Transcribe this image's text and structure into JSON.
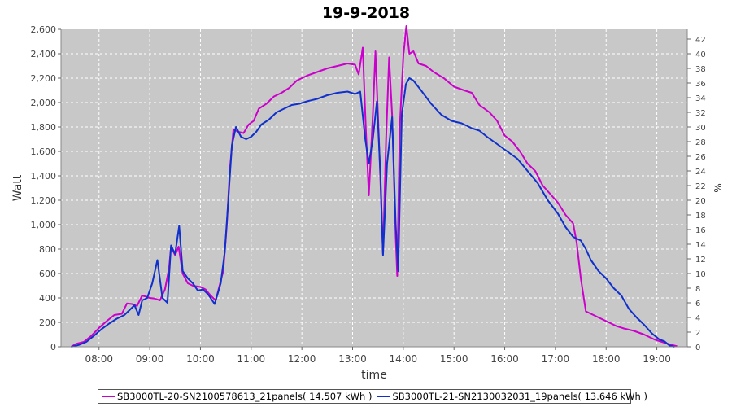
{
  "chart_data": {
    "type": "line",
    "title": "19-9-2018",
    "xlabel": "time",
    "ylabel": "Watt",
    "y2label": "%",
    "xlim": [
      7.25,
      19.6
    ],
    "ylim": [
      0,
      2600
    ],
    "y2lim": [
      0,
      43.333
    ],
    "x_ticks": [
      "08:00",
      "09:00",
      "10:00",
      "11:00",
      "12:00",
      "13:00",
      "14:00",
      "15:00",
      "16:00",
      "17:00",
      "18:00",
      "19:00"
    ],
    "y_ticks": [
      0,
      200,
      400,
      600,
      800,
      1000,
      1200,
      1400,
      1600,
      1800,
      2000,
      2200,
      2400,
      2600
    ],
    "y_tick_labels": [
      "0",
      "200",
      "400",
      "600",
      "800",
      "1,000",
      "1,200",
      "1,400",
      "1,600",
      "1,800",
      "2,000",
      "2,200",
      "2,400",
      "2,600"
    ],
    "y2_ticks": [
      0,
      2,
      4,
      6,
      8,
      10,
      12,
      14,
      16,
      18,
      20,
      22,
      24,
      26,
      28,
      30,
      32,
      34,
      36,
      38,
      40,
      42
    ],
    "grid": true,
    "legend_position": "bottom",
    "series": [
      {
        "name": "SB3000TL-20-SN2100578613_21panels( 14.507 kWh )",
        "color": "#cc00cc",
        "points": [
          [
            7.45,
            0
          ],
          [
            7.55,
            25
          ],
          [
            7.7,
            40
          ],
          [
            7.85,
            90
          ],
          [
            8.0,
            155
          ],
          [
            8.15,
            210
          ],
          [
            8.3,
            260
          ],
          [
            8.45,
            270
          ],
          [
            8.55,
            355
          ],
          [
            8.65,
            350
          ],
          [
            8.75,
            335
          ],
          [
            8.85,
            420
          ],
          [
            9.0,
            400
          ],
          [
            9.1,
            395
          ],
          [
            9.2,
            380
          ],
          [
            9.3,
            470
          ],
          [
            9.38,
            640
          ],
          [
            9.42,
            820
          ],
          [
            9.5,
            750
          ],
          [
            9.57,
            820
          ],
          [
            9.65,
            600
          ],
          [
            9.75,
            520
          ],
          [
            9.85,
            500
          ],
          [
            10.0,
            490
          ],
          [
            10.1,
            470
          ],
          [
            10.2,
            420
          ],
          [
            10.3,
            380
          ],
          [
            10.45,
            620
          ],
          [
            10.52,
            1000
          ],
          [
            10.58,
            1450
          ],
          [
            10.65,
            1780
          ],
          [
            10.75,
            1760
          ],
          [
            10.85,
            1750
          ],
          [
            10.95,
            1820
          ],
          [
            11.05,
            1850
          ],
          [
            11.15,
            1950
          ],
          [
            11.3,
            1990
          ],
          [
            11.45,
            2050
          ],
          [
            11.6,
            2080
          ],
          [
            11.75,
            2120
          ],
          [
            11.9,
            2180
          ],
          [
            12.1,
            2220
          ],
          [
            12.3,
            2250
          ],
          [
            12.5,
            2280
          ],
          [
            12.7,
            2300
          ],
          [
            12.9,
            2320
          ],
          [
            13.05,
            2310
          ],
          [
            13.12,
            2230
          ],
          [
            13.2,
            2450
          ],
          [
            13.26,
            1800
          ],
          [
            13.32,
            1240
          ],
          [
            13.4,
            1900
          ],
          [
            13.45,
            2420
          ],
          [
            13.52,
            1700
          ],
          [
            13.6,
            760
          ],
          [
            13.66,
            1700
          ],
          [
            13.72,
            2370
          ],
          [
            13.78,
            1900
          ],
          [
            13.85,
            900
          ],
          [
            13.88,
            580
          ],
          [
            13.93,
            1800
          ],
          [
            14.0,
            2380
          ],
          [
            14.06,
            2650
          ],
          [
            14.12,
            2400
          ],
          [
            14.2,
            2420
          ],
          [
            14.3,
            2320
          ],
          [
            14.45,
            2300
          ],
          [
            14.6,
            2250
          ],
          [
            14.8,
            2200
          ],
          [
            15.0,
            2130
          ],
          [
            15.2,
            2100
          ],
          [
            15.35,
            2080
          ],
          [
            15.5,
            1980
          ],
          [
            15.7,
            1920
          ],
          [
            15.85,
            1850
          ],
          [
            16.0,
            1730
          ],
          [
            16.15,
            1680
          ],
          [
            16.3,
            1600
          ],
          [
            16.45,
            1500
          ],
          [
            16.6,
            1440
          ],
          [
            16.75,
            1320
          ],
          [
            16.9,
            1250
          ],
          [
            17.05,
            1180
          ],
          [
            17.2,
            1080
          ],
          [
            17.35,
            1010
          ],
          [
            17.42,
            850
          ],
          [
            17.5,
            560
          ],
          [
            17.6,
            290
          ],
          [
            17.75,
            260
          ],
          [
            17.9,
            230
          ],
          [
            18.05,
            200
          ],
          [
            18.2,
            170
          ],
          [
            18.35,
            150
          ],
          [
            18.55,
            130
          ],
          [
            18.75,
            100
          ],
          [
            18.95,
            60
          ],
          [
            19.1,
            40
          ],
          [
            19.25,
            20
          ],
          [
            19.4,
            5
          ]
        ]
      },
      {
        "name": "SB3000TL-21-SN2130032031_19panels( 13.646 kWh )",
        "color": "#1030cc",
        "points": [
          [
            7.45,
            0
          ],
          [
            7.6,
            15
          ],
          [
            7.75,
            40
          ],
          [
            7.9,
            90
          ],
          [
            8.05,
            145
          ],
          [
            8.2,
            190
          ],
          [
            8.35,
            230
          ],
          [
            8.5,
            260
          ],
          [
            8.6,
            300
          ],
          [
            8.7,
            340
          ],
          [
            8.78,
            260
          ],
          [
            8.85,
            380
          ],
          [
            8.95,
            400
          ],
          [
            9.05,
            520
          ],
          [
            9.15,
            710
          ],
          [
            9.25,
            400
          ],
          [
            9.35,
            360
          ],
          [
            9.42,
            830
          ],
          [
            9.5,
            760
          ],
          [
            9.58,
            990
          ],
          [
            9.65,
            620
          ],
          [
            9.75,
            560
          ],
          [
            9.85,
            520
          ],
          [
            9.95,
            460
          ],
          [
            10.05,
            470
          ],
          [
            10.15,
            430
          ],
          [
            10.28,
            350
          ],
          [
            10.4,
            520
          ],
          [
            10.48,
            780
          ],
          [
            10.55,
            1200
          ],
          [
            10.62,
            1650
          ],
          [
            10.7,
            1800
          ],
          [
            10.8,
            1720
          ],
          [
            10.9,
            1700
          ],
          [
            11.0,
            1720
          ],
          [
            11.1,
            1760
          ],
          [
            11.2,
            1820
          ],
          [
            11.35,
            1860
          ],
          [
            11.5,
            1920
          ],
          [
            11.65,
            1950
          ],
          [
            11.8,
            1980
          ],
          [
            11.95,
            1990
          ],
          [
            12.1,
            2010
          ],
          [
            12.3,
            2030
          ],
          [
            12.5,
            2060
          ],
          [
            12.7,
            2080
          ],
          [
            12.9,
            2090
          ],
          [
            13.05,
            2070
          ],
          [
            13.15,
            2090
          ],
          [
            13.25,
            1700
          ],
          [
            13.32,
            1500
          ],
          [
            13.4,
            1700
          ],
          [
            13.48,
            2010
          ],
          [
            13.55,
            1400
          ],
          [
            13.6,
            750
          ],
          [
            13.68,
            1500
          ],
          [
            13.78,
            1880
          ],
          [
            13.85,
            1000
          ],
          [
            13.9,
            620
          ],
          [
            13.97,
            1900
          ],
          [
            14.05,
            2150
          ],
          [
            14.12,
            2200
          ],
          [
            14.2,
            2180
          ],
          [
            14.35,
            2100
          ],
          [
            14.55,
            1990
          ],
          [
            14.75,
            1900
          ],
          [
            14.95,
            1850
          ],
          [
            15.15,
            1830
          ],
          [
            15.35,
            1790
          ],
          [
            15.5,
            1770
          ],
          [
            15.65,
            1720
          ],
          [
            15.85,
            1660
          ],
          [
            16.05,
            1600
          ],
          [
            16.25,
            1540
          ],
          [
            16.45,
            1440
          ],
          [
            16.65,
            1340
          ],
          [
            16.85,
            1200
          ],
          [
            17.05,
            1090
          ],
          [
            17.2,
            980
          ],
          [
            17.35,
            900
          ],
          [
            17.5,
            870
          ],
          [
            17.6,
            800
          ],
          [
            17.7,
            710
          ],
          [
            17.85,
            620
          ],
          [
            18.0,
            560
          ],
          [
            18.15,
            480
          ],
          [
            18.3,
            420
          ],
          [
            18.45,
            310
          ],
          [
            18.6,
            240
          ],
          [
            18.75,
            180
          ],
          [
            18.9,
            110
          ],
          [
            19.05,
            60
          ],
          [
            19.15,
            45
          ],
          [
            19.25,
            10
          ],
          [
            19.35,
            0
          ]
        ]
      }
    ]
  }
}
